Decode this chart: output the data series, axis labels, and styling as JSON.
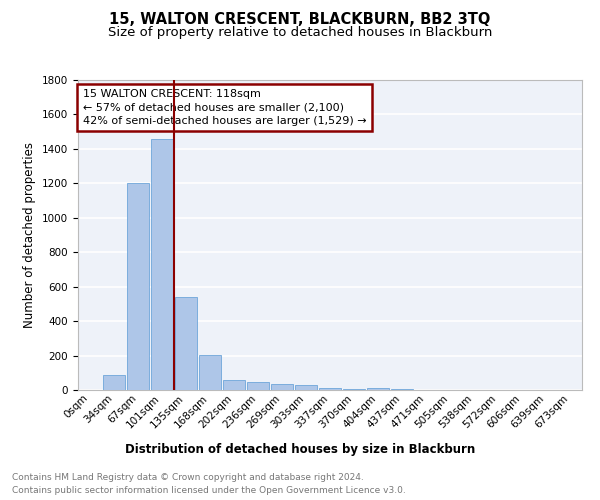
{
  "title": "15, WALTON CRESCENT, BLACKBURN, BB2 3TQ",
  "subtitle": "Size of property relative to detached houses in Blackburn",
  "xlabel": "Distribution of detached houses by size in Blackburn",
  "ylabel": "Number of detached properties",
  "bar_labels": [
    "0sqm",
    "34sqm",
    "67sqm",
    "101sqm",
    "135sqm",
    "168sqm",
    "202sqm",
    "236sqm",
    "269sqm",
    "303sqm",
    "337sqm",
    "370sqm",
    "404sqm",
    "437sqm",
    "471sqm",
    "505sqm",
    "538sqm",
    "572sqm",
    "606sqm",
    "639sqm",
    "673sqm"
  ],
  "bar_values": [
    0,
    85,
    1200,
    1460,
    540,
    205,
    60,
    48,
    35,
    28,
    10,
    5,
    12,
    5,
    0,
    0,
    0,
    0,
    0,
    0,
    0
  ],
  "bar_color": "#aec6e8",
  "bar_edge_color": "#5b9bd5",
  "vline_color": "#8b0000",
  "annotation_box_color": "#8b0000",
  "annotation_title": "15 WALTON CRESCENT: 118sqm",
  "annotation_line1": "← 57% of detached houses are smaller (2,100)",
  "annotation_line2": "42% of semi-detached houses are larger (1,529) →",
  "vline_x": 3.5,
  "ylim": [
    0,
    1800
  ],
  "yticks": [
    0,
    200,
    400,
    600,
    800,
    1000,
    1200,
    1400,
    1600,
    1800
  ],
  "bg_color": "#eef2f9",
  "grid_color": "#ffffff",
  "title_fontsize": 10.5,
  "subtitle_fontsize": 9.5,
  "axis_label_fontsize": 8.5,
  "tick_fontsize": 7.5,
  "annotation_fontsize": 8,
  "footer_fontsize": 6.5,
  "footer_line1": "Contains HM Land Registry data © Crown copyright and database right 2024.",
  "footer_line2": "Contains public sector information licensed under the Open Government Licence v3.0."
}
